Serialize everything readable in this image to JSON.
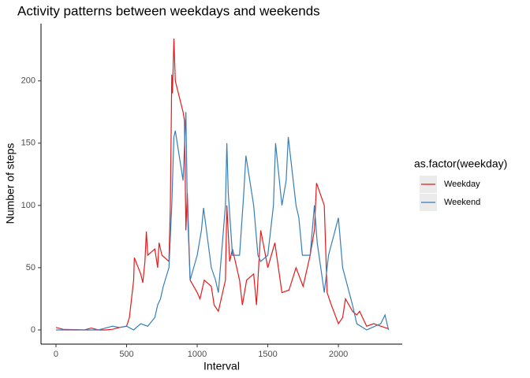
{
  "chart_data": {
    "type": "line",
    "title": "Activity patterns between weekdays and weekends",
    "x_label": "Interval",
    "y_label": "Number of steps",
    "legend_title": "as.factor(weekday)",
    "xlim": [
      -106,
      2452
    ],
    "ylim": [
      -11.4,
      246
    ],
    "xticks": [
      0,
      500,
      1000,
      1500,
      2000
    ],
    "yticks": [
      0,
      50,
      100,
      150,
      200
    ],
    "series": [
      {
        "name": "Weekday",
        "color": "#e41a1c",
        "x": [
          0,
          50,
          100,
          150,
          200,
          250,
          300,
          350,
          400,
          450,
          500,
          520,
          550,
          555,
          600,
          615,
          630,
          640,
          650,
          700,
          720,
          730,
          750,
          800,
          810,
          820,
          825,
          835,
          845,
          900,
          910,
          920,
          930,
          950,
          1000,
          1020,
          1050,
          1100,
          1120,
          1150,
          1200,
          1210,
          1230,
          1250,
          1300,
          1320,
          1350,
          1400,
          1420,
          1450,
          1500,
          1550,
          1600,
          1650,
          1700,
          1750,
          1800,
          1830,
          1845,
          1900,
          1920,
          1950,
          2000,
          2030,
          2050,
          2100,
          2130,
          2150,
          2200,
          2250,
          2300,
          2355
        ],
        "values": [
          2,
          0.5,
          0.3,
          0.2,
          0,
          1.5,
          0,
          0,
          0.5,
          2,
          3,
          10,
          40,
          58,
          45,
          38,
          55,
          79,
          60,
          65,
          50,
          70,
          60,
          55,
          100,
          205,
          190,
          234,
          200,
          175,
          168,
          80,
          110,
          40,
          30,
          25,
          40,
          35,
          20,
          15,
          40,
          100,
          55,
          65,
          40,
          20,
          40,
          45,
          20,
          80,
          50,
          70,
          30,
          32,
          50,
          35,
          60,
          80,
          118,
          100,
          30,
          20,
          5,
          10,
          25,
          15,
          12,
          15,
          3,
          5,
          3,
          1
        ]
      },
      {
        "name": "Weekend",
        "color": "#377eb8",
        "x": [
          0,
          50,
          100,
          200,
          300,
          400,
          450,
          500,
          550,
          600,
          650,
          700,
          720,
          740,
          760,
          800,
          820,
          835,
          845,
          900,
          920,
          930,
          950,
          1000,
          1030,
          1045,
          1100,
          1130,
          1150,
          1200,
          1210,
          1220,
          1250,
          1300,
          1330,
          1345,
          1400,
          1430,
          1450,
          1500,
          1540,
          1555,
          1600,
          1630,
          1645,
          1700,
          1720,
          1745,
          1800,
          1830,
          1850,
          1900,
          1930,
          2000,
          2030,
          2100,
          2130,
          2200,
          2300,
          2330,
          2355
        ],
        "values": [
          0,
          0,
          0,
          0,
          0,
          3,
          2,
          3,
          0,
          5,
          3,
          10,
          20,
          25,
          35,
          50,
          100,
          155,
          160,
          120,
          175,
          100,
          40,
          60,
          80,
          98,
          50,
          40,
          30,
          100,
          150,
          110,
          60,
          60,
          110,
          140,
          100,
          60,
          55,
          60,
          100,
          150,
          100,
          120,
          155,
          100,
          90,
          60,
          60,
          100,
          70,
          30,
          60,
          90,
          50,
          20,
          5,
          0,
          5,
          12,
          0
        ]
      }
    ]
  }
}
